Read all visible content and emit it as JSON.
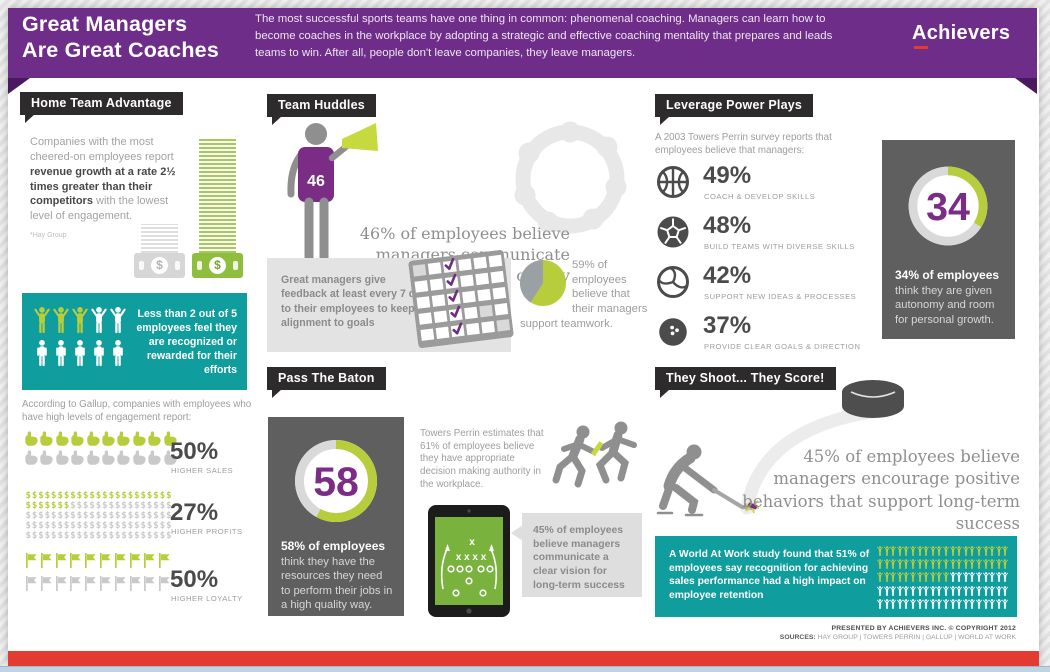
{
  "header": {
    "title_line1": "Great Managers",
    "title_line2": "Are Great Coaches",
    "description": "The most successful sports teams have one thing in common: phenomenal coaching.  Managers can learn how to become coaches in the workplace by adopting a strategic and effective coaching mentality that prepares and leads teams to win.  After all, people don't leave companies, they leave managers.",
    "logo": "Achievers"
  },
  "colors": {
    "purple": "#6f2d8a",
    "accent_purple": "#7b2d86",
    "lime": "#b8cd3c",
    "teal": "#0f9d9d",
    "red": "#e33b30",
    "dark_gray_box": "#5f5f5f"
  },
  "left": {
    "tag": "Home Team Advantage",
    "intro_pre": "Companies with the most cheered-on employees report ",
    "intro_bold": "revenue growth at a rate 2½ times greater than their competitors",
    "intro_post": " with the lowest level of engagement.",
    "source": "*Hay Group",
    "money_icon": "money-stack-bars-icon",
    "teal_callout": "Less than 2 out of 5 employees feel they are recognized or rewarded for their efforts",
    "teal_figures": {
      "icon": "person",
      "items": [
        [
          "lime up",
          3
        ],
        [
          "white up",
          2
        ],
        [
          "white down",
          5
        ]
      ]
    },
    "gallup_intro": "According to Gallup, companies with employees who have high levels of engagement report:",
    "stats": [
      {
        "value": "50%",
        "label": "HIGHER SALES",
        "icon_name": "foam-finger-icon",
        "icons": {
          "icon": "finger",
          "items": [
            [
              "lime",
              10
            ],
            [
              "gray",
              10
            ]
          ]
        }
      },
      {
        "value": "27%",
        "label": "HIGHER PROFITS",
        "icon_name": "dollar-sign-icon",
        "icons": {
          "icon": "dollar",
          "items": [
            [
              "lime",
              30
            ],
            [
              "gray",
              85
            ]
          ]
        }
      },
      {
        "value": "50%",
        "label": "HIGHER LOYALTY",
        "icon_name": "flag-icon",
        "icons": {
          "icon": "flag",
          "items": [
            [
              "lime",
              10
            ],
            [
              "gray",
              10
            ]
          ]
        }
      }
    ]
  },
  "middle": {
    "tag_team_huddles": "Team Huddles",
    "jersey_number": "46",
    "coach_icon": "coach-megaphone-icon",
    "huddle_icon": "team-huddle-icon",
    "communicate_stat": "46% of employees believe managers communicate clearly and openly",
    "feedback_note": "Great managers give feedback at least every 7 days to their employees to keep alignment to goals",
    "calendar_icon": "calendar-checkmarks-icon",
    "teamwork_pie_percent": 59,
    "teamwork_stat": "59% of employees believe that their managers support teamwork.",
    "tag_pass_baton": "Pass The Baton",
    "donut_value": "58",
    "resources_bold": "58% of employees",
    "resources_rest": " think they have the resources they need to perform their jobs in a high quality way.",
    "towers_note": "Towers Perrin estimates that 61% of employees believe they have appropriate decision making authority in the workplace.",
    "runners_icon": "baton-pass-runners-icon",
    "tablet_icon": "tablet-playbook-icon",
    "vision_stat": "45% of employees believe managers communicate a clear vision for long-term success"
  },
  "right": {
    "tag_leverage": "Leverage Power Plays",
    "survey_intro": "A 2003 Towers Perrin survey reports that employees believe that managers:",
    "plays": [
      {
        "value": "49%",
        "label": "COACH & DEVELOP SKILLS",
        "icon": "basketball-icon"
      },
      {
        "value": "48%",
        "label": "BUILD TEAMS WITH DIVERSE SKILLS",
        "icon": "soccer-ball-icon"
      },
      {
        "value": "42%",
        "label": "SUPPORT NEW IDEAS & PROCESSES",
        "icon": "volleyball-icon"
      },
      {
        "value": "37%",
        "label": "PROVIDE CLEAR GOALS & DIRECTION",
        "icon": "bowling-ball-icon"
      }
    ],
    "autonomy_donut": "34",
    "autonomy_bold": "34% of employees",
    "autonomy_rest": " think they are given autonomy and room for personal growth.",
    "tag_shoot": "They Shoot... They Score!",
    "hockey_icon": "hockey-player-icon",
    "puck_icon": "hockey-puck-icon",
    "encourage_stat": "45% of employees believe managers encourage positive behaviors that support long-term success",
    "world_note": "A World At Work study found that 51% of employees say recognition for achieving sales performance had a high impact on employee retention",
    "world_grid": {
      "icon": "person",
      "items": [
        [
          "lime up",
          51
        ],
        [
          "white up",
          49
        ]
      ]
    }
  },
  "footer": {
    "presented": "PRESENTED BY ACHIEVERS INC. © COPYRIGHT 2012",
    "sources_label": "SOURCES:",
    "sources": " HAY GROUP  |  TOWERS PERRIN  |  GALLUP  |  WORLD AT WORK"
  }
}
